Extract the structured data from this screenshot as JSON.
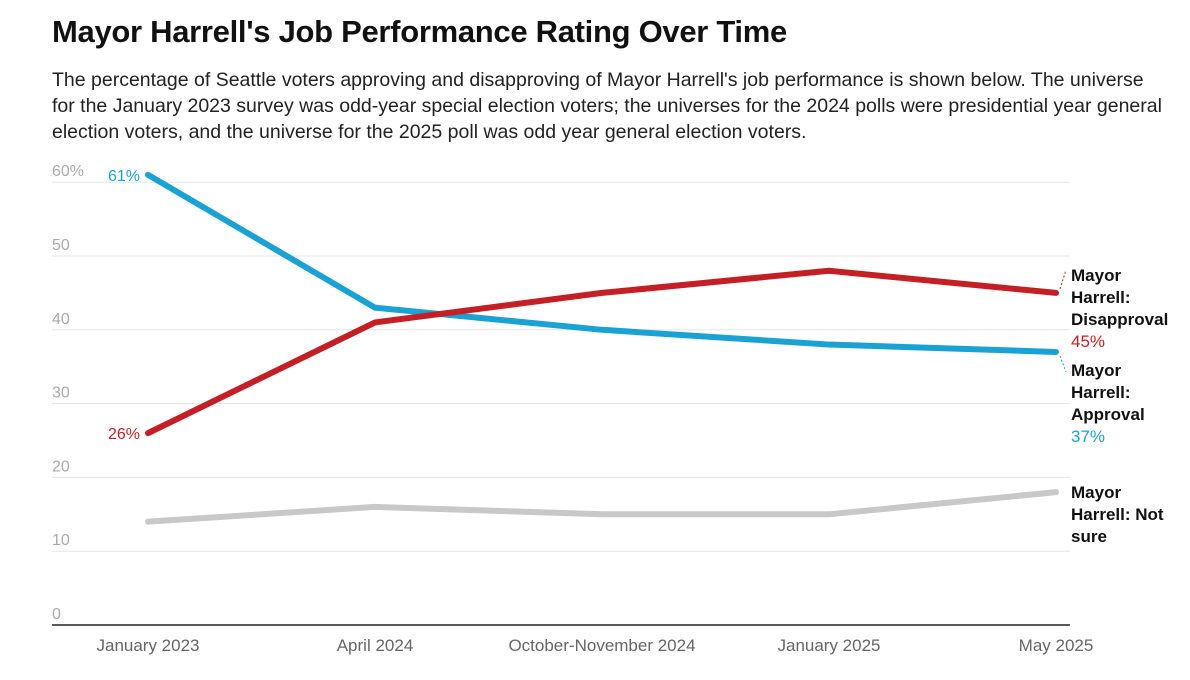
{
  "title": "Mayor Harrell's Job Performance Rating Over Time",
  "subtitle": "The percentage of Seattle voters approving and disapproving of Mayor Harrell's job performance is shown below. The universe for the January 2023 survey was odd-year special election voters; the universes for the 2024 polls were presidential year general election voters, and the universe for the 2025 poll was odd year general election voters.",
  "chart_data": {
    "type": "line",
    "title": "Mayor Harrell's Job Performance Rating Over Time",
    "categories": [
      "January 2023",
      "April 2024",
      "October-November 2024",
      "January 2025",
      "May 2025"
    ],
    "y_tick_labels": [
      "0",
      "10",
      "20",
      "30",
      "40",
      "50",
      "60%"
    ],
    "y_ticks": [
      0,
      10,
      20,
      30,
      40,
      50,
      60
    ],
    "ylim": [
      0,
      61
    ],
    "grid": true,
    "legend": "direct labels at right end",
    "series": [
      {
        "key": "approval",
        "name": "Mayor Harrell: Approval",
        "label_lines": [
          "Mayor",
          "Harrell:",
          "Approval"
        ],
        "color": "#1aa2d4",
        "values": [
          61,
          43,
          40,
          38,
          37
        ],
        "start_label": "61%",
        "end_label": "37%"
      },
      {
        "key": "disapproval",
        "name": "Mayor Harrell: Disapproval",
        "label_lines": [
          "Mayor",
          "Harrell:",
          "Disapproval"
        ],
        "color": "#c41f24",
        "values": [
          26,
          41,
          45,
          48,
          45
        ],
        "start_label": "26%",
        "end_label": "45%"
      },
      {
        "key": "not_sure",
        "name": "Mayor Harrell: Not sure",
        "label_lines": [
          "Mayor",
          "Harrell: Not",
          "sure"
        ],
        "color": "#c8c8c8",
        "values": [
          14,
          16,
          15,
          15,
          18
        ]
      }
    ]
  }
}
